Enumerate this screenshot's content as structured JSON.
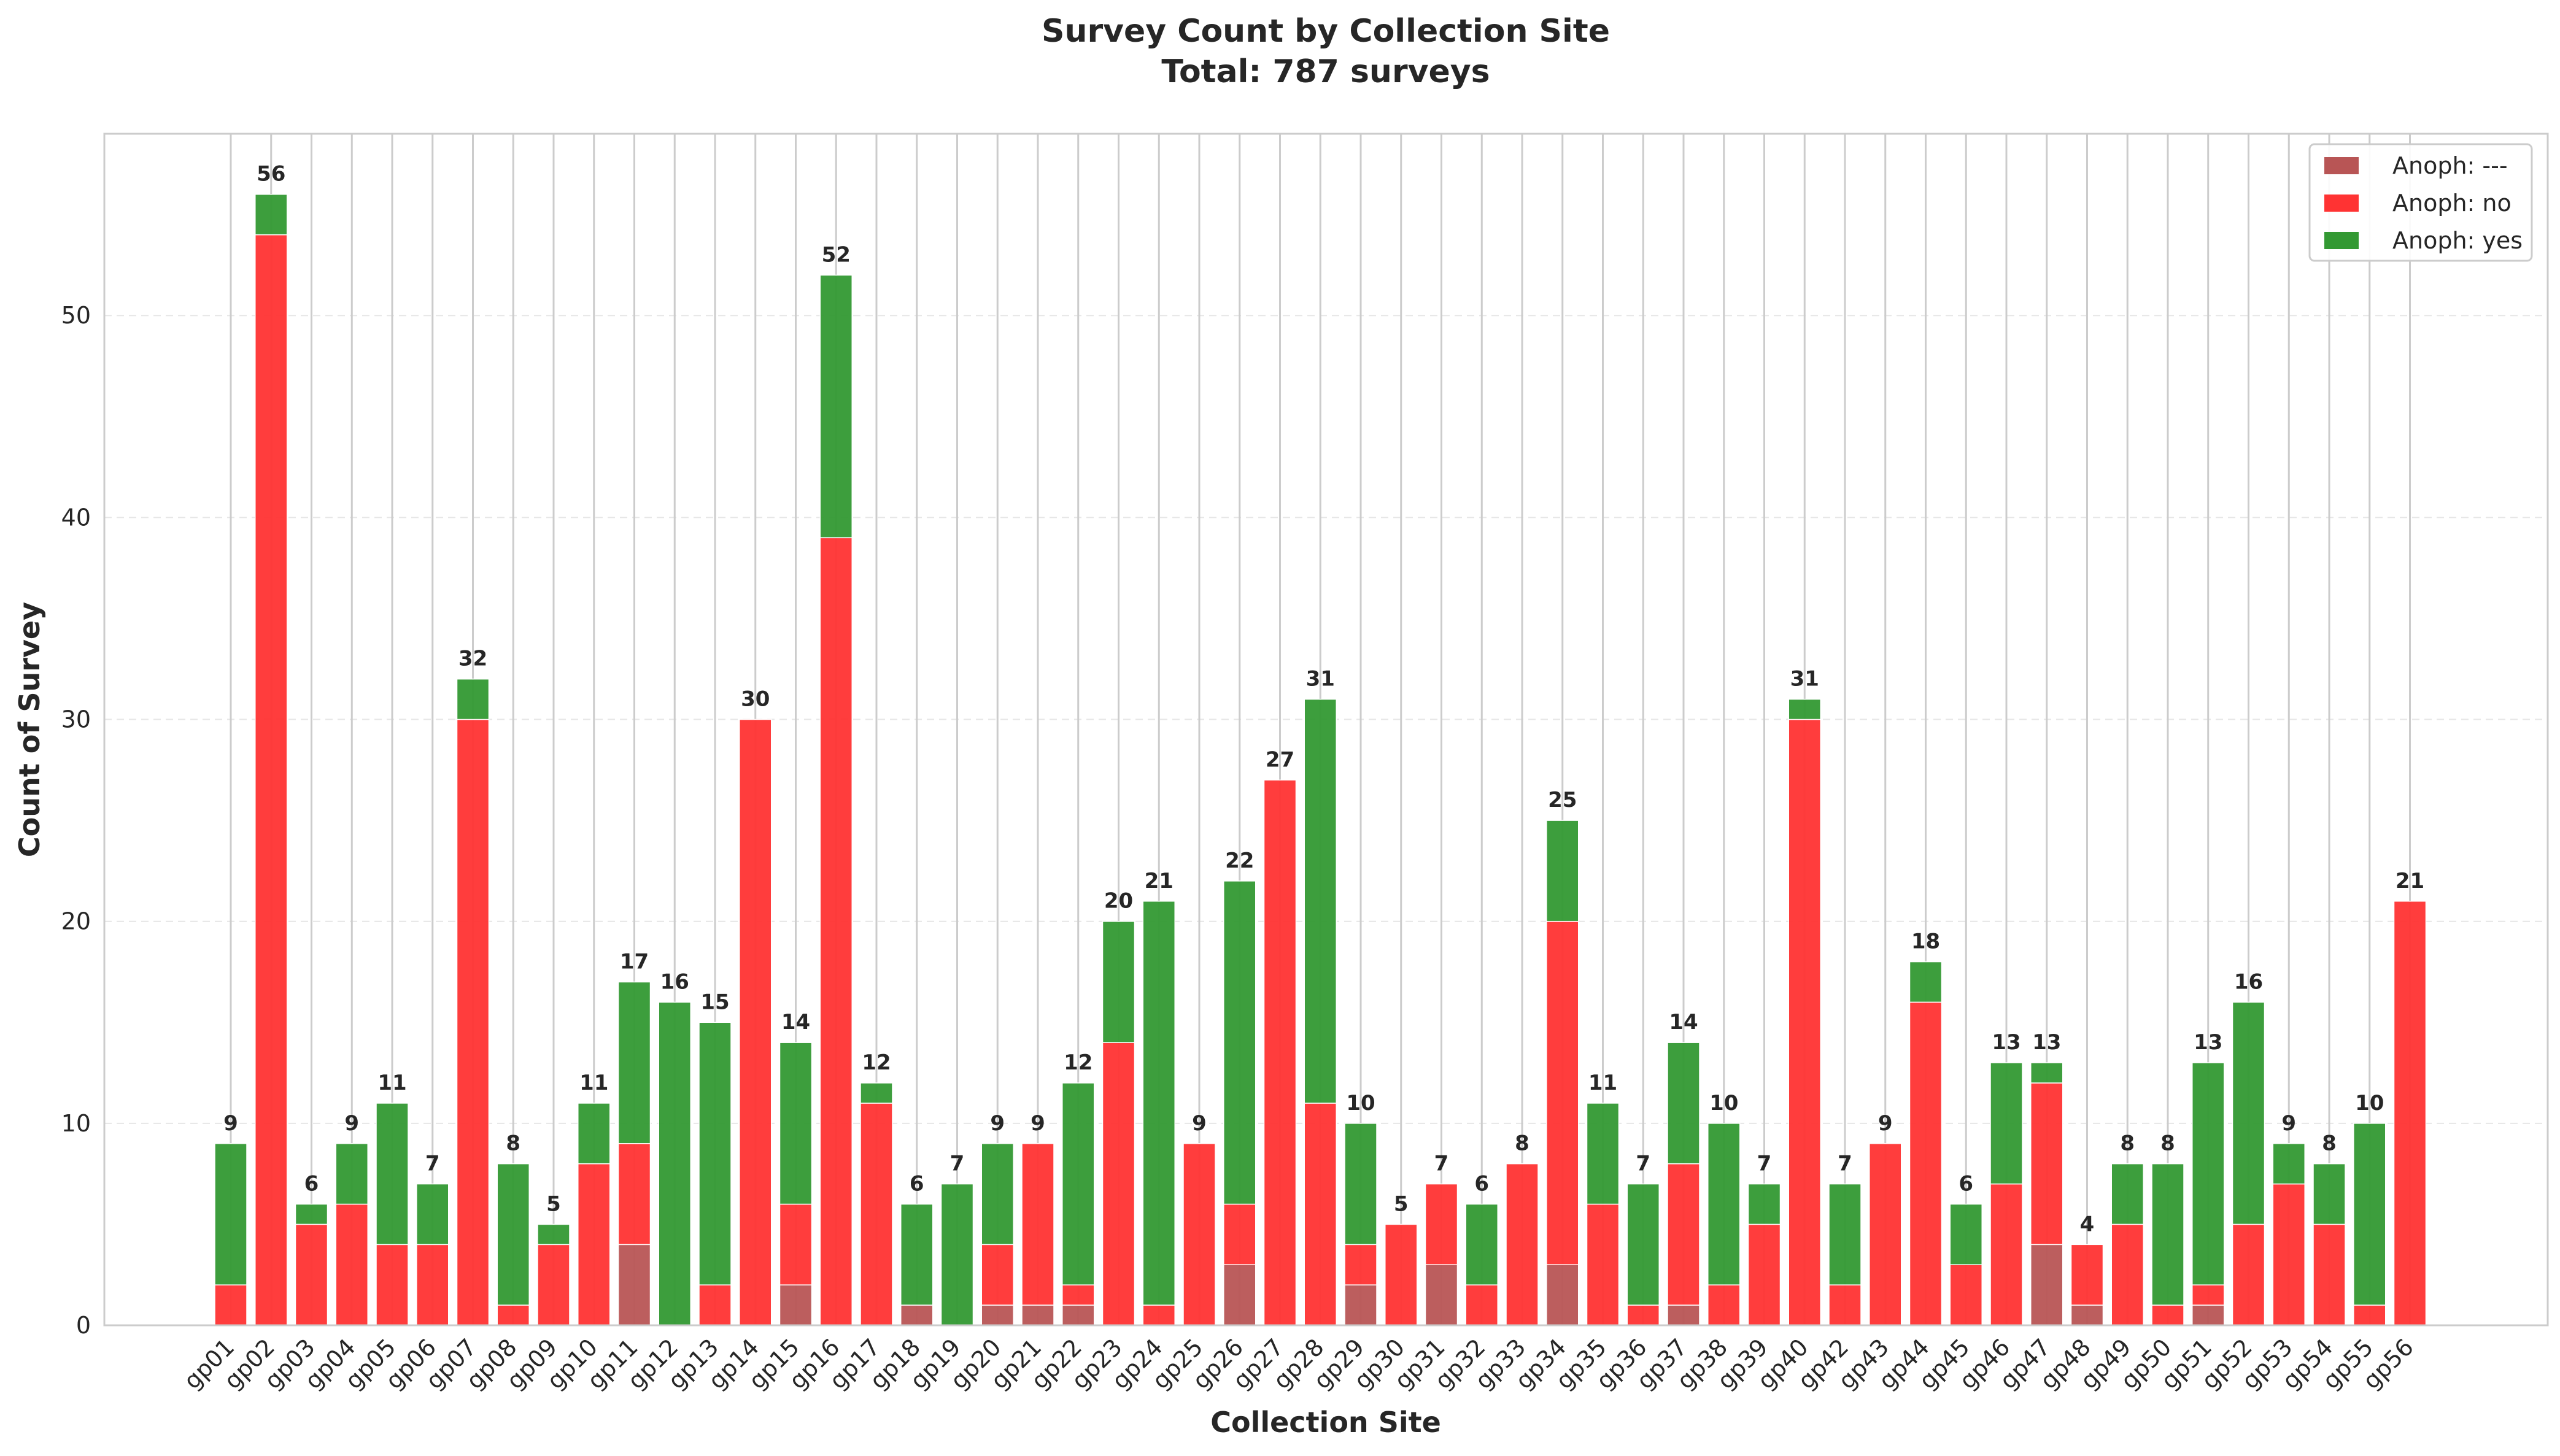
{
  "chart_data": {
    "type": "bar",
    "stacked": true,
    "title": "Survey Count by Collection Site",
    "subtitle": "Total: 787 surveys",
    "xlabel": "Collection Site",
    "ylabel": "Count of Survey",
    "ylim": [
      0,
      59
    ],
    "yticks": [
      0,
      10,
      20,
      30,
      40,
      50
    ],
    "grid": true,
    "legend_position": "top-right",
    "categories": [
      "gp01",
      "gp02",
      "gp03",
      "gp04",
      "gp05",
      "gp06",
      "gp07",
      "gp08",
      "gp09",
      "gp10",
      "gp11",
      "gp12",
      "gp13",
      "gp14",
      "gp15",
      "gp16",
      "gp17",
      "gp18",
      "gp19",
      "gp20",
      "gp21",
      "gp22",
      "gp23",
      "gp24",
      "gp25",
      "gp26",
      "gp27",
      "gp28",
      "gp29",
      "gp30",
      "gp31",
      "gp32",
      "gp33",
      "gp34",
      "gp35",
      "gp36",
      "gp37",
      "gp38",
      "gp39",
      "gp40",
      "gp42",
      "gp43",
      "gp44",
      "gp45",
      "gp46",
      "gp47",
      "gp48",
      "gp49",
      "gp50",
      "gp51",
      "gp52",
      "gp53",
      "gp54",
      "gp55",
      "gp56"
    ],
    "series": [
      {
        "name": "Anoph: ---",
        "color": "#b85555",
        "values": [
          0,
          0,
          0,
          0,
          0,
          0,
          0,
          0,
          0,
          0,
          4,
          0,
          0,
          0,
          2,
          0,
          0,
          1,
          0,
          1,
          1,
          1,
          0,
          0,
          0,
          3,
          0,
          0,
          2,
          0,
          3,
          0,
          0,
          3,
          0,
          0,
          1,
          0,
          0,
          0,
          0,
          0,
          0,
          0,
          0,
          4,
          1,
          0,
          0,
          1,
          0,
          0,
          0,
          0,
          0
        ]
      },
      {
        "name": "Anoph: no",
        "color": "#ff3333",
        "values": [
          2,
          54,
          5,
          6,
          4,
          4,
          30,
          1,
          4,
          8,
          5,
          0,
          2,
          30,
          4,
          39,
          11,
          0,
          0,
          3,
          8,
          1,
          14,
          1,
          9,
          3,
          27,
          11,
          2,
          5,
          4,
          2,
          8,
          17,
          6,
          1,
          7,
          2,
          5,
          30,
          2,
          9,
          16,
          3,
          7,
          8,
          3,
          5,
          1,
          1,
          5,
          7,
          5,
          1,
          21
        ]
      },
      {
        "name": "Anoph: yes",
        "color": "#339933",
        "values": [
          7,
          2,
          1,
          3,
          7,
          3,
          2,
          7,
          1,
          3,
          8,
          16,
          13,
          0,
          8,
          13,
          1,
          5,
          7,
          5,
          0,
          10,
          6,
          20,
          0,
          16,
          0,
          20,
          6,
          0,
          0,
          4,
          0,
          5,
          5,
          6,
          6,
          8,
          2,
          1,
          5,
          0,
          2,
          3,
          6,
          1,
          0,
          3,
          7,
          11,
          11,
          2,
          3,
          9,
          0
        ]
      }
    ],
    "totals": [
      9,
      56,
      6,
      9,
      11,
      7,
      32,
      8,
      5,
      11,
      17,
      16,
      15,
      30,
      14,
      52,
      12,
      6,
      7,
      9,
      9,
      12,
      20,
      21,
      9,
      22,
      27,
      31,
      10,
      5,
      7,
      6,
      8,
      25,
      11,
      7,
      14,
      10,
      7,
      31,
      7,
      9,
      18,
      6,
      13,
      13,
      4,
      8,
      8,
      13,
      16,
      9,
      8,
      10,
      21
    ]
  },
  "colors": {
    "background": "#ffffff",
    "axes_edge": "#cccccc",
    "grid_vertical": "#cccccc",
    "grid_horizontal": "#e6e6e6",
    "text": "#262626"
  }
}
